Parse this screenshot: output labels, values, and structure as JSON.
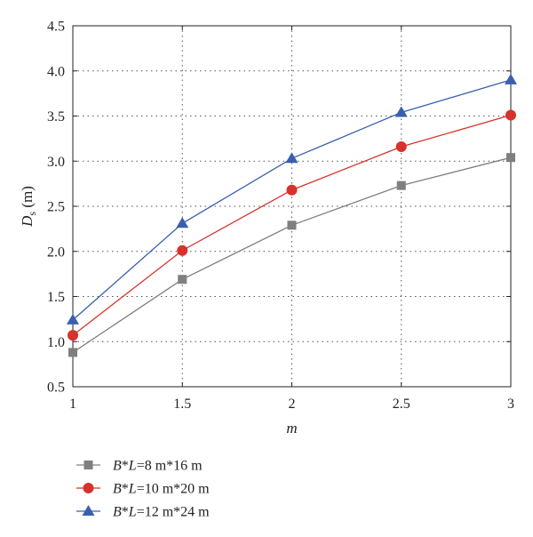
{
  "chart_data": {
    "type": "line",
    "xlabel": "m",
    "ylabel": "D_s (m)",
    "ylabel_main": "D",
    "ylabel_sub": "s",
    "ylabel_unit": "(m)",
    "xlim": [
      1,
      3
    ],
    "ylim": [
      0.5,
      4.5
    ],
    "x_ticks": [
      1,
      1.5,
      2,
      2.5,
      3
    ],
    "x_tick_labels": [
      "1",
      "1.5",
      "2",
      "2.5",
      "3"
    ],
    "y_ticks": [
      0.5,
      1.0,
      1.5,
      2.0,
      2.5,
      3.0,
      3.5,
      4.0,
      4.5
    ],
    "y_tick_labels": [
      "0.5",
      "1.0",
      "1.5",
      "2.0",
      "2.5",
      "3.0",
      "3.5",
      "4.0",
      "4.5"
    ],
    "grid": true,
    "legend_position": "below plot",
    "x": [
      1,
      1.5,
      2,
      2.5,
      3
    ],
    "series": [
      {
        "name": "B*L=8 m*16 m",
        "legend_var": "B",
        "legend_op": "*",
        "legend_var2": "L",
        "legend_rest": "=8 m*16 m",
        "values": [
          0.88,
          1.69,
          2.29,
          2.73,
          3.04
        ],
        "color": "#7f7f7f",
        "marker": "square"
      },
      {
        "name": "B*L=10 m*20 m",
        "legend_var": "B",
        "legend_op": "*",
        "legend_var2": "L",
        "legend_rest": "=10 m*20 m",
        "values": [
          1.07,
          2.01,
          2.68,
          3.16,
          3.51
        ],
        "color": "#d7322b",
        "marker": "circle"
      },
      {
        "name": "B*L=12 m*24 m",
        "legend_var": "B",
        "legend_op": "*",
        "legend_var2": "L",
        "legend_rest": "=12 m*24 m",
        "values": [
          1.24,
          2.31,
          3.03,
          3.54,
          3.9
        ],
        "color": "#3a5fb0",
        "marker": "triangle"
      }
    ]
  }
}
